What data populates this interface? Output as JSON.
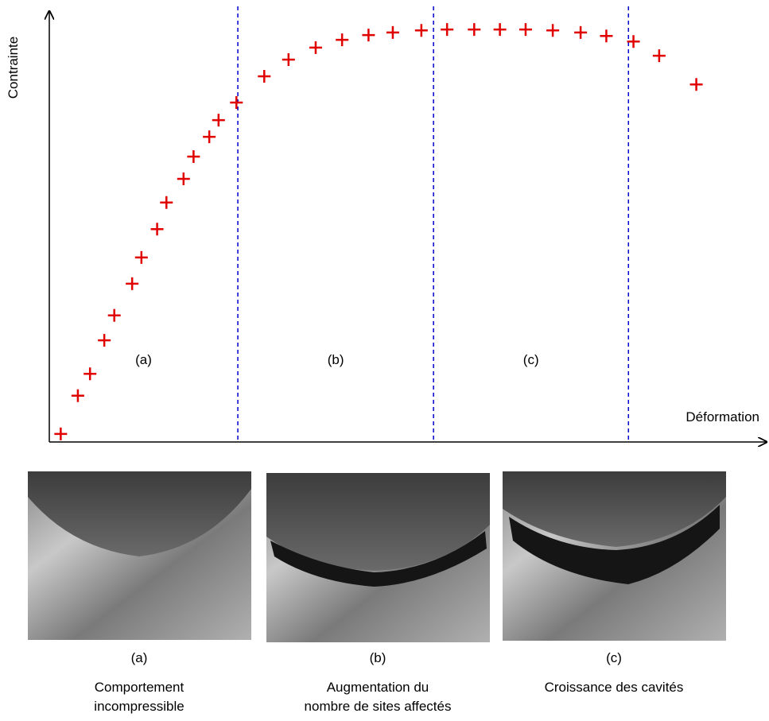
{
  "chart_data": {
    "type": "scatter",
    "y_label": "Contrainte",
    "x_label": "Déformation",
    "xlim": [
      0,
      100
    ],
    "ylim": [
      0,
      100
    ],
    "marker": "+",
    "series": [
      {
        "color": "#e00000",
        "x": [
          1.6,
          4.0,
          5.7,
          7.7,
          9.1,
          11.6,
          12.9,
          15.1,
          16.4,
          18.8,
          20.2,
          22.4,
          23.7,
          26.2,
          30.1,
          33.5,
          37.3,
          41.0,
          44.7,
          48.1,
          52.1,
          55.7,
          59.5,
          63.1,
          66.7,
          70.5,
          74.4,
          78.0,
          81.8,
          85.4,
          90.6
        ],
        "values": [
          1.7,
          10.6,
          15.7,
          23.5,
          29.3,
          36.7,
          42.8,
          49.4,
          55.6,
          61.1,
          66.3,
          70.9,
          74.8,
          78.9,
          85.0,
          88.9,
          91.7,
          93.5,
          94.6,
          95.2,
          95.7,
          95.9,
          95.9,
          95.9,
          95.9,
          95.7,
          95.2,
          94.4,
          93.1,
          89.8,
          83.1
        ]
      }
    ],
    "boundaries": [
      26.4,
      53.8,
      81.1
    ],
    "boundary_color": "#0000cc",
    "regions": [
      "(a)",
      "(b)",
      "(c)"
    ]
  },
  "panels": [
    {
      "label": "(a)",
      "caption": [
        "Comportement",
        "incompressible"
      ]
    },
    {
      "label": "(b)",
      "caption": [
        "Augmentation du",
        "nombre de sites affectés"
      ]
    },
    {
      "label": "(c)",
      "caption": [
        "Croissance des cavités"
      ]
    }
  ]
}
